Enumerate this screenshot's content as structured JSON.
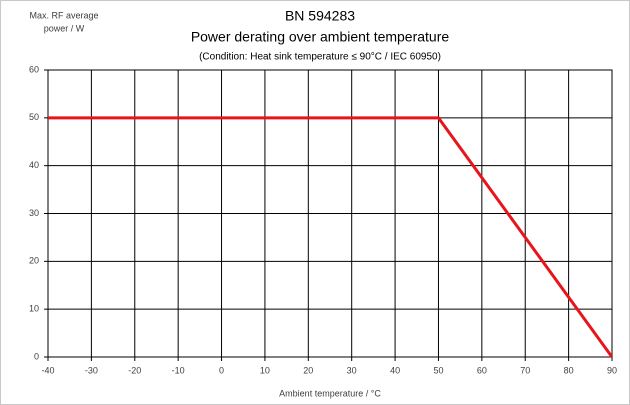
{
  "chart_data": {
    "type": "line",
    "title": "BN 594283",
    "subtitle": "Power derating over ambient temperature",
    "note": "(Condition: Heat sink  temperature ≤ 90°C / IEC 60950)",
    "ylabel": [
      "Max. RF average",
      "power / W"
    ],
    "xlabel": "Ambient temperature / °C",
    "x": [
      -40,
      50,
      90
    ],
    "series": [
      {
        "color": "#e8141b",
        "values": [
          50,
          50,
          0
        ]
      }
    ],
    "xlim": [
      -40,
      90
    ],
    "xticks": [
      -40,
      -30,
      -20,
      -10,
      0,
      10,
      20,
      30,
      40,
      50,
      60,
      70,
      80,
      90
    ],
    "ylim": [
      0,
      60
    ],
    "yticks": [
      0,
      10,
      20,
      30,
      40,
      50,
      60
    ],
    "grid": true
  }
}
